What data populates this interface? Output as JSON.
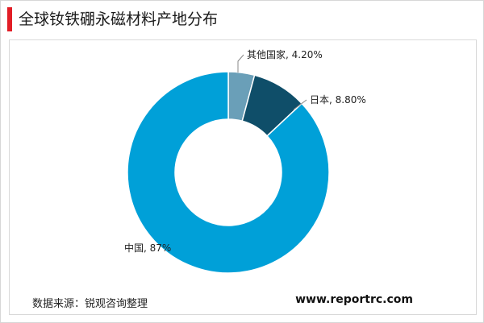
{
  "title": "全球钕铁硼永磁材料产地分布",
  "source_note": "数据来源：锐观咨询整理",
  "website": "www.reportrc.com",
  "colors": {
    "accent_bar": "#e21e26"
  },
  "chart_data": {
    "type": "pie",
    "title": "",
    "donut": true,
    "legend": "none",
    "slices": [
      {
        "label": "其他国家, 4.20%",
        "name": "其他国家",
        "value": 4.2,
        "color": "#6a9fb8"
      },
      {
        "label": "日本, 8.80%",
        "name": "日本",
        "value": 8.8,
        "color": "#0f4e69"
      },
      {
        "label": "中国, 87%",
        "name": "中国",
        "value": 87,
        "color": "#00a0d8"
      }
    ]
  }
}
